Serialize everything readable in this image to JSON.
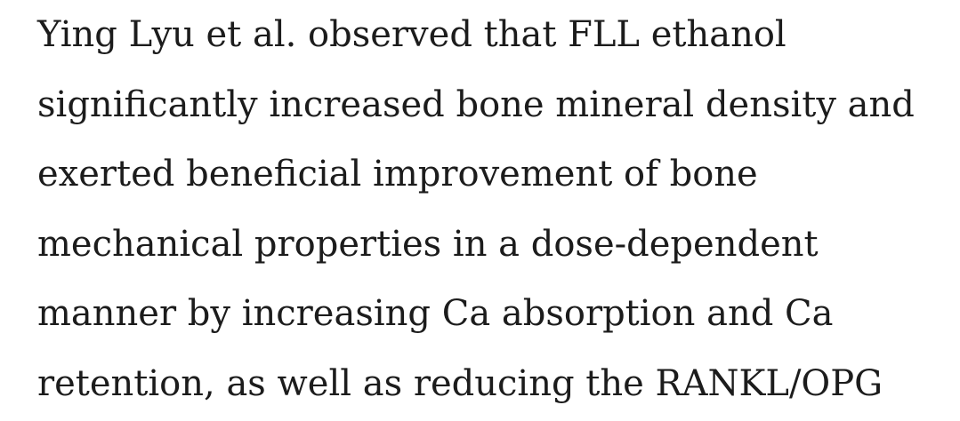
{
  "paragraph": {
    "lines": [
      "Ying Lyu et al. observed that FLL ethanol",
      "significantly increased bone mineral density and",
      "exerted beneficial improvement of bone",
      "mechanical properties in a dose-dependent",
      "manner by increasing Ca absorption and Ca",
      "retention, as well as reducing the RANKL/OPG"
    ]
  },
  "colors": {
    "text": "#1c1c1c",
    "background": "#ffffff"
  }
}
